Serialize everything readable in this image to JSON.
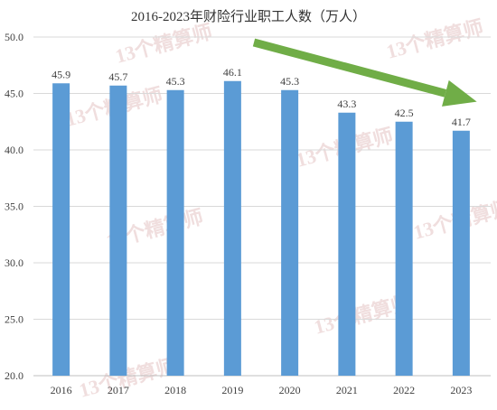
{
  "chart_data": {
    "type": "bar",
    "title": "2016-2023年财险行业职工人数（万人）",
    "categories": [
      "2016",
      "2017",
      "2018",
      "2019",
      "2020",
      "2021",
      "2022",
      "2023"
    ],
    "values": [
      45.9,
      45.7,
      45.3,
      46.1,
      45.3,
      43.3,
      42.5,
      41.7
    ],
    "data_labels": [
      "45.9",
      "45.7",
      "45.3",
      "46.1",
      "45.3",
      "43.3",
      "42.5",
      "41.7"
    ],
    "ylim": [
      20,
      50
    ],
    "yticks": [
      "20.0",
      "25.0",
      "30.0",
      "35.0",
      "40.0",
      "45.0",
      "50.0"
    ],
    "grid": true,
    "legend": "none",
    "bar_color": "#5B9BD5",
    "annotation": {
      "type": "arrow",
      "meaning": "downward trend",
      "color": "#70AD47"
    },
    "watermark": "13个精算师"
  }
}
